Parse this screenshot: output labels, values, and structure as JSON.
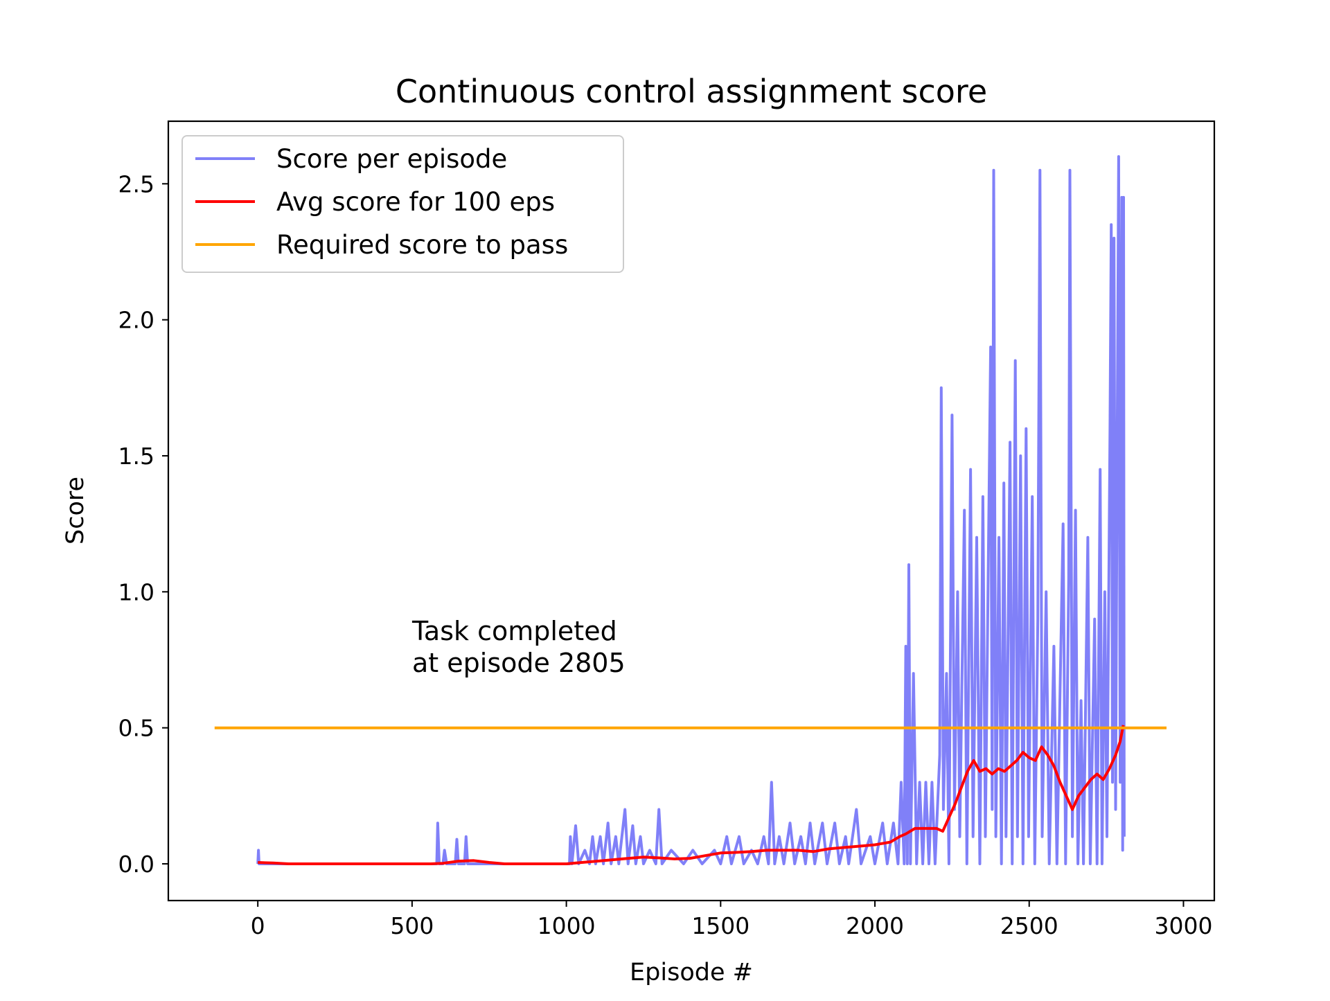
{
  "chart_data": {
    "type": "line",
    "title": "Continuous control assignment score",
    "xlabel": "Episode #",
    "ylabel": "Score",
    "xlim": [
      -290,
      3100
    ],
    "ylim": [
      -0.135,
      2.73
    ],
    "xticks": [
      0,
      500,
      1000,
      1500,
      2000,
      2500,
      3000
    ],
    "xtick_labels": [
      "0",
      "500",
      "1000",
      "1500",
      "2000",
      "2500",
      "3000"
    ],
    "yticks": [
      0.0,
      0.5,
      1.0,
      1.5,
      2.0,
      2.5
    ],
    "ytick_labels": [
      "0.0",
      "0.5",
      "1.0",
      "1.5",
      "2.0",
      "2.5"
    ],
    "grid": false,
    "legend_position": "top-left",
    "annotation": [
      "Task completed",
      "at episode 2805"
    ],
    "series": [
      {
        "name": "Score per episode",
        "color": "#8080f8",
        "note": "approximate envelope of per-episode scores (high-frequency noise)",
        "points": [
          [
            0,
            0.0
          ],
          [
            2,
            0.05
          ],
          [
            4,
            0.0
          ],
          [
            580,
            0.0
          ],
          [
            583,
            0.15
          ],
          [
            588,
            0.0
          ],
          [
            600,
            0.0
          ],
          [
            605,
            0.05
          ],
          [
            612,
            0.0
          ],
          [
            640,
            0.0
          ],
          [
            645,
            0.09
          ],
          [
            650,
            0.0
          ],
          [
            670,
            0.0
          ],
          [
            675,
            0.1
          ],
          [
            680,
            0.0
          ],
          [
            1010,
            0.0
          ],
          [
            1013,
            0.1
          ],
          [
            1018,
            0.0
          ],
          [
            1030,
            0.14
          ],
          [
            1040,
            0.0
          ],
          [
            1060,
            0.05
          ],
          [
            1075,
            0.0
          ],
          [
            1085,
            0.1
          ],
          [
            1095,
            0.0
          ],
          [
            1110,
            0.1
          ],
          [
            1120,
            0.0
          ],
          [
            1135,
            0.15
          ],
          [
            1145,
            0.0
          ],
          [
            1160,
            0.1
          ],
          [
            1170,
            0.0
          ],
          [
            1190,
            0.2
          ],
          [
            1200,
            0.0
          ],
          [
            1215,
            0.14
          ],
          [
            1225,
            0.0
          ],
          [
            1240,
            0.1
          ],
          [
            1250,
            0.0
          ],
          [
            1270,
            0.05
          ],
          [
            1290,
            0.0
          ],
          [
            1300,
            0.2
          ],
          [
            1310,
            0.0
          ],
          [
            1340,
            0.05
          ],
          [
            1380,
            0.0
          ],
          [
            1410,
            0.05
          ],
          [
            1440,
            0.0
          ],
          [
            1480,
            0.05
          ],
          [
            1500,
            0.0
          ],
          [
            1520,
            0.1
          ],
          [
            1535,
            0.0
          ],
          [
            1560,
            0.1
          ],
          [
            1575,
            0.0
          ],
          [
            1600,
            0.05
          ],
          [
            1620,
            0.0
          ],
          [
            1640,
            0.1
          ],
          [
            1655,
            0.0
          ],
          [
            1665,
            0.3
          ],
          [
            1675,
            0.0
          ],
          [
            1690,
            0.1
          ],
          [
            1705,
            0.0
          ],
          [
            1725,
            0.15
          ],
          [
            1740,
            0.0
          ],
          [
            1760,
            0.1
          ],
          [
            1775,
            0.0
          ],
          [
            1790,
            0.15
          ],
          [
            1805,
            0.0
          ],
          [
            1830,
            0.15
          ],
          [
            1845,
            0.0
          ],
          [
            1870,
            0.15
          ],
          [
            1885,
            0.0
          ],
          [
            1905,
            0.1
          ],
          [
            1915,
            0.0
          ],
          [
            1940,
            0.2
          ],
          [
            1955,
            0.0
          ],
          [
            1985,
            0.1
          ],
          [
            2000,
            0.0
          ],
          [
            2025,
            0.15
          ],
          [
            2040,
            0.0
          ],
          [
            2060,
            0.15
          ],
          [
            2075,
            0.0
          ],
          [
            2085,
            0.3
          ],
          [
            2095,
            0.0
          ],
          [
            2100,
            0.8
          ],
          [
            2105,
            0.0
          ],
          [
            2110,
            1.1
          ],
          [
            2115,
            0.0
          ],
          [
            2125,
            0.7
          ],
          [
            2135,
            0.0
          ],
          [
            2145,
            0.3
          ],
          [
            2155,
            0.0
          ],
          [
            2165,
            0.3
          ],
          [
            2175,
            0.0
          ],
          [
            2185,
            0.3
          ],
          [
            2195,
            0.0
          ],
          [
            2210,
            0.4
          ],
          [
            2215,
            1.75
          ],
          [
            2222,
            0.2
          ],
          [
            2232,
            0.7
          ],
          [
            2240,
            0.0
          ],
          [
            2250,
            1.65
          ],
          [
            2258,
            0.2
          ],
          [
            2268,
            1.0
          ],
          [
            2275,
            0.1
          ],
          [
            2290,
            1.3
          ],
          [
            2298,
            0.0
          ],
          [
            2310,
            1.45
          ],
          [
            2318,
            0.1
          ],
          [
            2330,
            1.2
          ],
          [
            2340,
            0.0
          ],
          [
            2350,
            1.35
          ],
          [
            2358,
            0.1
          ],
          [
            2375,
            1.9
          ],
          [
            2380,
            0.2
          ],
          [
            2385,
            2.55
          ],
          [
            2392,
            0.1
          ],
          [
            2402,
            1.2
          ],
          [
            2410,
            0.0
          ],
          [
            2418,
            1.4
          ],
          [
            2425,
            0.1
          ],
          [
            2438,
            1.55
          ],
          [
            2445,
            0.0
          ],
          [
            2455,
            1.85
          ],
          [
            2462,
            0.1
          ],
          [
            2472,
            1.5
          ],
          [
            2480,
            0.0
          ],
          [
            2490,
            1.6
          ],
          [
            2498,
            0.1
          ],
          [
            2510,
            1.35
          ],
          [
            2518,
            0.0
          ],
          [
            2528,
            0.9
          ],
          [
            2535,
            2.55
          ],
          [
            2542,
            0.1
          ],
          [
            2555,
            1.0
          ],
          [
            2565,
            0.0
          ],
          [
            2580,
            0.8
          ],
          [
            2590,
            0.0
          ],
          [
            2610,
            1.25
          ],
          [
            2618,
            0.0
          ],
          [
            2628,
            1.05
          ],
          [
            2632,
            2.55
          ],
          [
            2640,
            0.1
          ],
          [
            2650,
            1.3
          ],
          [
            2658,
            0.0
          ],
          [
            2668,
            0.6
          ],
          [
            2676,
            0.0
          ],
          [
            2690,
            1.2
          ],
          [
            2698,
            0.0
          ],
          [
            2712,
            0.9
          ],
          [
            2720,
            0.0
          ],
          [
            2730,
            1.45
          ],
          [
            2736,
            0.0
          ],
          [
            2745,
            1.0
          ],
          [
            2752,
            0.1
          ],
          [
            2762,
            1.6
          ],
          [
            2766,
            2.35
          ],
          [
            2770,
            0.3
          ],
          [
            2775,
            2.3
          ],
          [
            2780,
            0.2
          ],
          [
            2785,
            1.5
          ],
          [
            2790,
            2.6
          ],
          [
            2795,
            0.3
          ],
          [
            2800,
            2.45
          ],
          [
            2803,
            0.05
          ],
          [
            2806,
            2.45
          ],
          [
            2808,
            0.1
          ]
        ]
      },
      {
        "name": "Avg score for 100 eps",
        "color": "#ff0000",
        "points": [
          [
            0,
            0.005
          ],
          [
            50,
            0.003
          ],
          [
            100,
            0.0
          ],
          [
            200,
            0.0
          ],
          [
            300,
            0.0
          ],
          [
            400,
            0.0
          ],
          [
            500,
            0.0
          ],
          [
            560,
            0.0
          ],
          [
            600,
            0.002
          ],
          [
            650,
            0.01
          ],
          [
            700,
            0.012
          ],
          [
            750,
            0.005
          ],
          [
            800,
            0.0
          ],
          [
            900,
            0.0
          ],
          [
            1000,
            0.0
          ],
          [
            1050,
            0.005
          ],
          [
            1100,
            0.01
          ],
          [
            1150,
            0.015
          ],
          [
            1200,
            0.02
          ],
          [
            1250,
            0.025
          ],
          [
            1300,
            0.022
          ],
          [
            1350,
            0.018
          ],
          [
            1400,
            0.02
          ],
          [
            1450,
            0.03
          ],
          [
            1500,
            0.04
          ],
          [
            1550,
            0.042
          ],
          [
            1600,
            0.045
          ],
          [
            1650,
            0.05
          ],
          [
            1700,
            0.05
          ],
          [
            1750,
            0.05
          ],
          [
            1800,
            0.045
          ],
          [
            1850,
            0.055
          ],
          [
            1900,
            0.06
          ],
          [
            1950,
            0.065
          ],
          [
            2000,
            0.07
          ],
          [
            2050,
            0.08
          ],
          [
            2080,
            0.1
          ],
          [
            2100,
            0.11
          ],
          [
            2130,
            0.13
          ],
          [
            2160,
            0.13
          ],
          [
            2200,
            0.13
          ],
          [
            2220,
            0.12
          ],
          [
            2240,
            0.17
          ],
          [
            2260,
            0.22
          ],
          [
            2280,
            0.28
          ],
          [
            2300,
            0.34
          ],
          [
            2320,
            0.38
          ],
          [
            2340,
            0.34
          ],
          [
            2360,
            0.35
          ],
          [
            2380,
            0.33
          ],
          [
            2400,
            0.35
          ],
          [
            2420,
            0.34
          ],
          [
            2440,
            0.36
          ],
          [
            2460,
            0.38
          ],
          [
            2480,
            0.41
          ],
          [
            2500,
            0.39
          ],
          [
            2520,
            0.38
          ],
          [
            2540,
            0.43
          ],
          [
            2560,
            0.4
          ],
          [
            2580,
            0.36
          ],
          [
            2600,
            0.3
          ],
          [
            2620,
            0.25
          ],
          [
            2640,
            0.2
          ],
          [
            2660,
            0.25
          ],
          [
            2680,
            0.28
          ],
          [
            2700,
            0.31
          ],
          [
            2720,
            0.33
          ],
          [
            2740,
            0.31
          ],
          [
            2760,
            0.35
          ],
          [
            2780,
            0.4
          ],
          [
            2795,
            0.45
          ],
          [
            2805,
            0.51
          ]
        ]
      },
      {
        "name": "Required score to pass",
        "color": "#ffa500",
        "points": [
          [
            -140,
            0.5
          ],
          [
            2945,
            0.5
          ]
        ]
      }
    ]
  }
}
